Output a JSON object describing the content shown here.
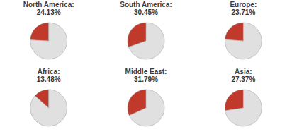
{
  "chart_data": [
    {
      "type": "pie",
      "title": "North America:",
      "subtitle": "24.13%",
      "values": [
        24.13,
        75.87
      ],
      "colors": [
        "#c0392b",
        "#e0e0e0"
      ]
    },
    {
      "type": "pie",
      "title": "South America:",
      "subtitle": "30.45%",
      "values": [
        30.45,
        69.55
      ],
      "colors": [
        "#c0392b",
        "#e0e0e0"
      ]
    },
    {
      "type": "pie",
      "title": "Europe:",
      "subtitle": "23.71%",
      "values": [
        23.71,
        76.29
      ],
      "colors": [
        "#c0392b",
        "#e0e0e0"
      ]
    },
    {
      "type": "pie",
      "title": "Africa:",
      "subtitle": "13.48%",
      "values": [
        13.48,
        86.52
      ],
      "colors": [
        "#c0392b",
        "#e0e0e0"
      ]
    },
    {
      "type": "pie",
      "title": "Middle East:",
      "subtitle": "31.79%",
      "values": [
        31.79,
        68.21
      ],
      "colors": [
        "#c0392b",
        "#e0e0e0"
      ]
    },
    {
      "type": "pie",
      "title": "Asia:",
      "subtitle": "27.37%",
      "values": [
        27.37,
        72.63
      ],
      "colors": [
        "#c0392b",
        "#e0e0e0"
      ]
    }
  ]
}
